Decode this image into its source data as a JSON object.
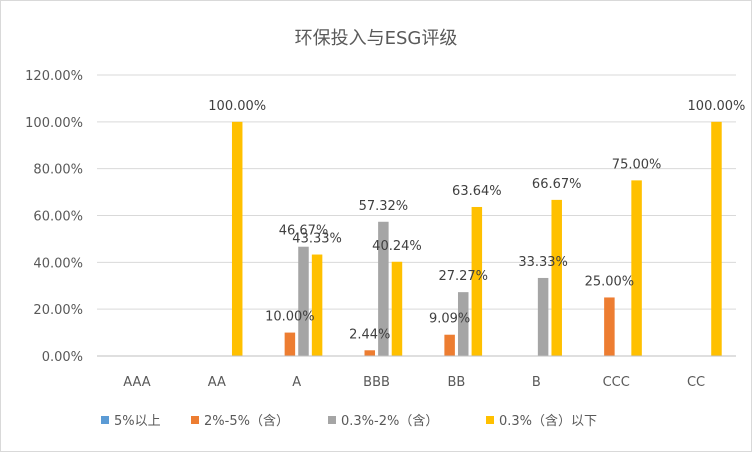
{
  "chart_data": {
    "type": "bar",
    "title": "环保投入与ESG评级",
    "categories": [
      "AAA",
      "AA",
      "A",
      "BBB",
      "BB",
      "B",
      "CCC",
      "CC"
    ],
    "ylim": [
      0,
      120
    ],
    "yticks": [
      0,
      20,
      40,
      60,
      80,
      100,
      120
    ],
    "ytick_labels": [
      "0.00%",
      "20.00%",
      "40.00%",
      "60.00%",
      "80.00%",
      "100.00%",
      "120.00%"
    ],
    "grid": true,
    "legend_position": "bottom",
    "series": [
      {
        "name": "5%以上",
        "color": "#5b9bd5",
        "values": [
          null,
          null,
          null,
          null,
          null,
          null,
          null,
          null
        ]
      },
      {
        "name": "2%-5%（含）",
        "color": "#ed7d31",
        "values": [
          null,
          null,
          10.0,
          2.44,
          9.09,
          null,
          25.0,
          null
        ]
      },
      {
        "name": "0.3%-2%（含）",
        "color": "#a5a5a5",
        "values": [
          null,
          null,
          46.67,
          57.32,
          27.27,
          33.33,
          null,
          null
        ]
      },
      {
        "name": "0.3%（含）以下",
        "color": "#ffc000",
        "values": [
          null,
          100.0,
          43.33,
          40.24,
          63.64,
          66.67,
          75.0,
          100.0
        ]
      }
    ],
    "data_labels": [
      [
        null,
        null,
        null,
        null,
        null,
        null,
        null,
        null
      ],
      [
        null,
        null,
        "10.00%",
        "2.44%",
        "9.09%",
        null,
        "25.00%",
        null
      ],
      [
        null,
        null,
        "46.67%",
        "57.32%",
        "27.27%",
        "33.33%",
        null,
        null
      ],
      [
        null,
        "100.00%",
        "43.33%",
        "40.24%",
        "63.64%",
        "66.67%",
        "75.00%",
        "100.00%"
      ]
    ]
  }
}
